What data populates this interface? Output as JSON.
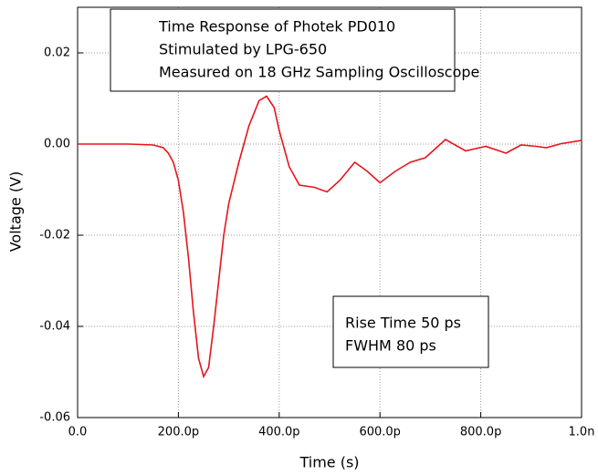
{
  "chart_data": {
    "type": "line",
    "xlabel": "Time (s)",
    "ylabel": "Voltage (V)",
    "annotations": [
      {
        "lines": [
          "Time Response of Photek PD010",
          "Stimulated by LPG-650",
          "Measured on 18 GHz Sampling Oscilloscope"
        ]
      },
      {
        "lines": [
          "Rise Time 50 ps",
          "FWHM 80 ps"
        ]
      }
    ],
    "xlim": [
      0,
      1e-09
    ],
    "xticks": [
      {
        "value": 0,
        "label": "0.0"
      },
      {
        "value": 2e-10,
        "label": "200.0p"
      },
      {
        "value": 4e-10,
        "label": "400.0p"
      },
      {
        "value": 6e-10,
        "label": "600.0p"
      },
      {
        "value": 8e-10,
        "label": "800.0p"
      },
      {
        "value": 1e-09,
        "label": "1.0n"
      }
    ],
    "ylim": [
      -0.06,
      0.03
    ],
    "yticks": [
      -0.06,
      -0.04,
      -0.02,
      {
        "value": 0,
        "label": "0.00"
      },
      0.02
    ],
    "grid": true,
    "series": [
      {
        "color": "#e8141c",
        "x": [
          0,
          5e-11,
          1e-10,
          1.5e-10,
          1.7e-10,
          1.8e-10,
          1.9e-10,
          2e-10,
          2.1e-10,
          2.2e-10,
          2.3e-10,
          2.4e-10,
          2.5e-10,
          2.6e-10,
          2.7e-10,
          2.8e-10,
          2.9e-10,
          3e-10,
          3.2e-10,
          3.4e-10,
          3.6e-10,
          3.75e-10,
          3.9e-10,
          4e-10,
          4.2e-10,
          4.4e-10,
          4.7e-10,
          4.95e-10,
          5.2e-10,
          5.5e-10,
          5.75e-10,
          6e-10,
          6.3e-10,
          6.6e-10,
          6.9e-10,
          7.3e-10,
          7.7e-10,
          8.1e-10,
          8.5e-10,
          8.8e-10,
          9.1e-10,
          9.3e-10,
          9.6e-10,
          1e-09
        ],
        "values": [
          0,
          0,
          0,
          -0.0002,
          -0.0008,
          -0.002,
          -0.004,
          -0.008,
          -0.015,
          -0.025,
          -0.037,
          -0.047,
          -0.051,
          -0.049,
          -0.04,
          -0.03,
          -0.02,
          -0.013,
          -0.004,
          0.004,
          0.0095,
          0.0105,
          0.008,
          0.003,
          -0.005,
          -0.009,
          -0.0095,
          -0.0105,
          -0.008,
          -0.004,
          -0.006,
          -0.0085,
          -0.006,
          -0.004,
          -0.003,
          0.001,
          -0.0015,
          -0.0005,
          -0.002,
          -0.0002,
          -0.0005,
          -0.0008,
          0.0001,
          0.0008
        ]
      }
    ]
  }
}
